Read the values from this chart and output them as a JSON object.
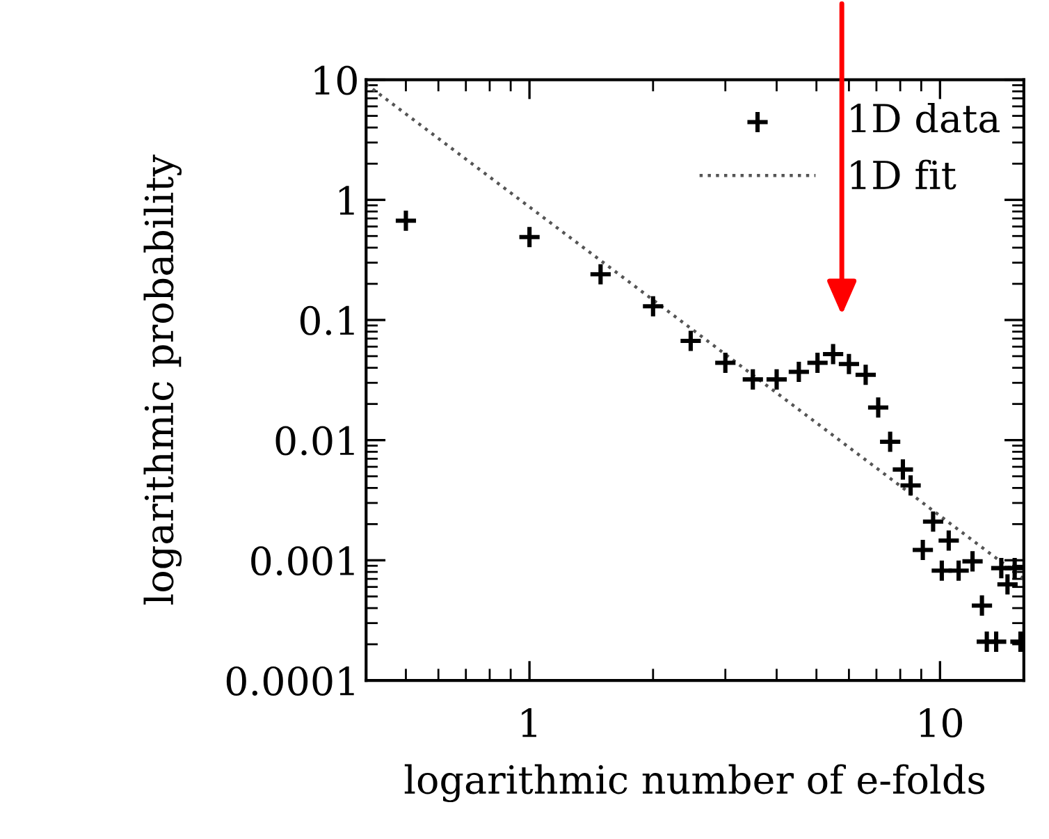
{
  "chart_data": {
    "type": "scatter",
    "xlabel": "logarithmic number of e-folds",
    "ylabel": "logarithmic probability",
    "log": "xy",
    "xlim": [
      0.4,
      16
    ],
    "xticks": [
      1,
      10
    ],
    "ylim": [
      0.0001,
      10
    ],
    "yticks": [
      10,
      1,
      0.1,
      0.01,
      0.001,
      0.0001
    ],
    "grid": false,
    "legend": "top right",
    "marker": "cross",
    "series": [
      {
        "name": "1D data",
        "color": "#000000",
        "x": [
          0.5,
          1.0,
          1.49,
          2.0,
          2.47,
          3.0,
          3.5,
          4.0,
          4.53,
          5.03,
          5.49,
          6.0,
          6.59,
          7.07,
          7.56,
          8.12,
          8.48,
          9.08,
          9.62,
          10.1,
          10.5,
          11.1,
          12.0,
          12.65,
          13.0,
          13.7,
          14.1,
          14.6,
          15.2,
          15.7
        ],
        "values": [
          0.67,
          0.49,
          0.24,
          0.13,
          0.067,
          0.044,
          0.032,
          0.032,
          0.037,
          0.044,
          0.052,
          0.043,
          0.035,
          0.0187,
          0.0097,
          0.0057,
          0.0042,
          0.00122,
          0.0021,
          0.00082,
          0.00146,
          0.00082,
          0.00098,
          0.00042,
          0.00021,
          0.00021,
          0.00086,
          0.00063,
          0.00086,
          0.00021
        ]
      },
      {
        "name": "1D fit",
        "type": "line",
        "color": "#555555",
        "line_style": "dotted",
        "marker": "none",
        "x": [
          0.4,
          16
        ],
        "values": [
          9.2,
          0.0007
        ]
      }
    ]
  }
}
